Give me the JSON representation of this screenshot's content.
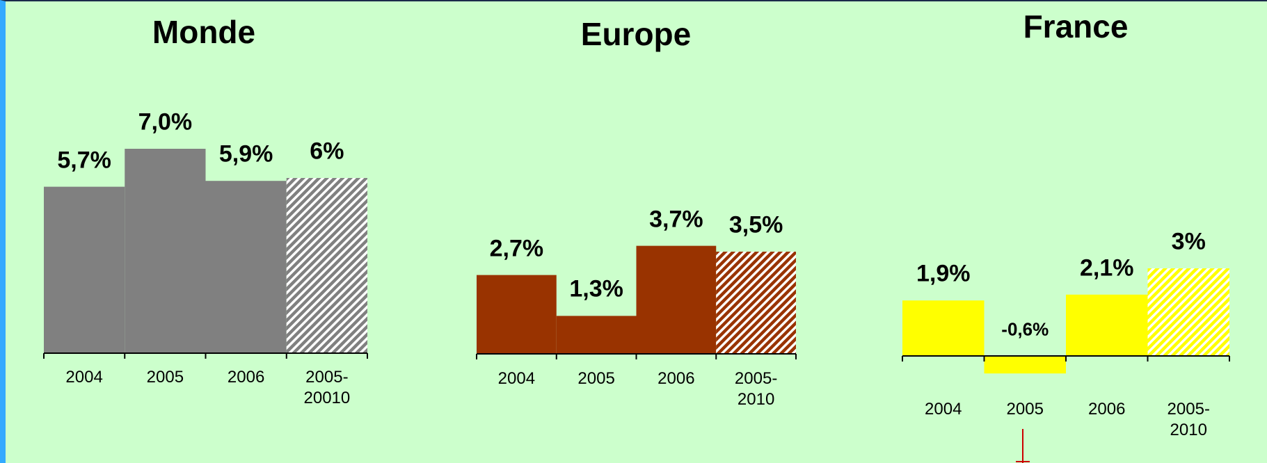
{
  "chart_data": [
    {
      "type": "bar",
      "title": "Monde",
      "categories": [
        "2004",
        "2005",
        "2006",
        "2005-\n20010"
      ],
      "values": [
        5.7,
        7.0,
        5.9,
        6
      ],
      "value_labels": [
        "5,7%",
        "7,0%",
        "5,9%",
        "6%"
      ],
      "color": "#808080",
      "hatched": [
        false,
        false,
        false,
        true
      ]
    },
    {
      "type": "bar",
      "title": "Europe",
      "categories": [
        "2004",
        "2005",
        "2006",
        "2005-\n2010"
      ],
      "values": [
        2.7,
        1.3,
        3.7,
        3.5
      ],
      "value_labels": [
        "2,7%",
        "1,3%",
        "3,7%",
        "3,5%"
      ],
      "color": "#993300",
      "hatched": [
        false,
        false,
        false,
        true
      ]
    },
    {
      "type": "bar",
      "title": "France",
      "categories": [
        "2004",
        "2005",
        "2006",
        "2005-\n2010"
      ],
      "values": [
        1.9,
        -0.6,
        2.1,
        3
      ],
      "value_labels": [
        "1,9%",
        "-0,6%",
        "2,1%",
        "3%"
      ],
      "color": "#ffff00",
      "hatched": [
        false,
        false,
        false,
        true
      ]
    }
  ]
}
